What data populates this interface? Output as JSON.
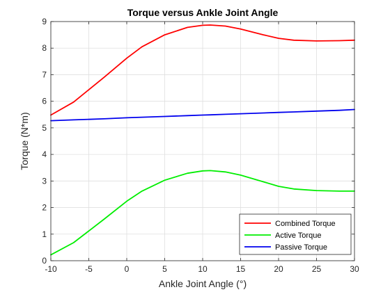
{
  "chart_data": {
    "type": "line",
    "title": "Torque versus Ankle Joint Angle",
    "xlabel": "Ankle Joint Angle (°)",
    "ylabel": "Torque (N*m)",
    "xlim": [
      -10,
      30
    ],
    "ylim": [
      0,
      9
    ],
    "xticks": [
      -10,
      -5,
      0,
      5,
      10,
      15,
      20,
      25,
      30
    ],
    "yticks": [
      0,
      1,
      2,
      3,
      4,
      5,
      6,
      7,
      8,
      9
    ],
    "grid": true,
    "legend_position": "bottom-right",
    "x": [
      -10,
      -7,
      -3,
      0,
      2,
      5,
      8,
      10,
      11,
      13,
      15,
      18,
      20,
      22,
      25,
      28,
      30
    ],
    "series": [
      {
        "name": "Combined Torque",
        "color": "#ff0000",
        "values": [
          5.48,
          5.97,
          6.9,
          7.62,
          8.05,
          8.5,
          8.78,
          8.86,
          8.87,
          8.83,
          8.72,
          8.5,
          8.37,
          8.3,
          8.27,
          8.28,
          8.3
        ]
      },
      {
        "name": "Active Torque",
        "color": "#00ee00",
        "values": [
          0.22,
          0.68,
          1.56,
          2.24,
          2.62,
          3.03,
          3.29,
          3.38,
          3.39,
          3.34,
          3.22,
          2.97,
          2.8,
          2.7,
          2.64,
          2.62,
          2.62
        ]
      },
      {
        "name": "Passive Torque",
        "color": "#0000ee",
        "values": [
          5.27,
          5.3,
          5.34,
          5.38,
          5.4,
          5.43,
          5.46,
          5.48,
          5.49,
          5.51,
          5.53,
          5.56,
          5.58,
          5.6,
          5.63,
          5.66,
          5.69
        ]
      }
    ]
  }
}
